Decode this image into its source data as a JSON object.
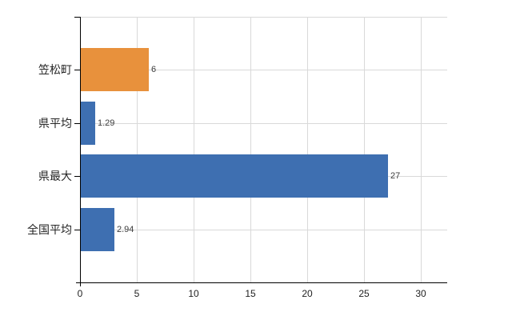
{
  "chart_data": {
    "type": "bar",
    "orientation": "horizontal",
    "title": "",
    "categories": [
      "笠松町",
      "県平均",
      "県最大",
      "全国平均"
    ],
    "values": [
      6,
      1.29,
      27,
      2.94
    ],
    "value_labels": [
      "6",
      "1.29",
      "27",
      "2.94"
    ],
    "bar_colors": [
      "#E8913C",
      "#3E6FB1",
      "#3E6FB1",
      "#3E6FB1"
    ],
    "xticks": [
      "0",
      "5",
      "10",
      "15",
      "20",
      "25",
      "30"
    ],
    "xtick_values": [
      0,
      5,
      10,
      15,
      20,
      25,
      30
    ],
    "xlim": [
      0,
      32.3
    ],
    "grid": true,
    "legend": "none",
    "colors": {
      "bar_highlight": "#E8913C",
      "bar_default": "#3E6FB1",
      "gridline": "#D9D9D9",
      "axis": "#000000",
      "value_label_text": "#3C3C3C",
      "category_label_text": "#262626",
      "tick_label_text": "#1F1F1F",
      "background": "#FFFFFF"
    }
  }
}
